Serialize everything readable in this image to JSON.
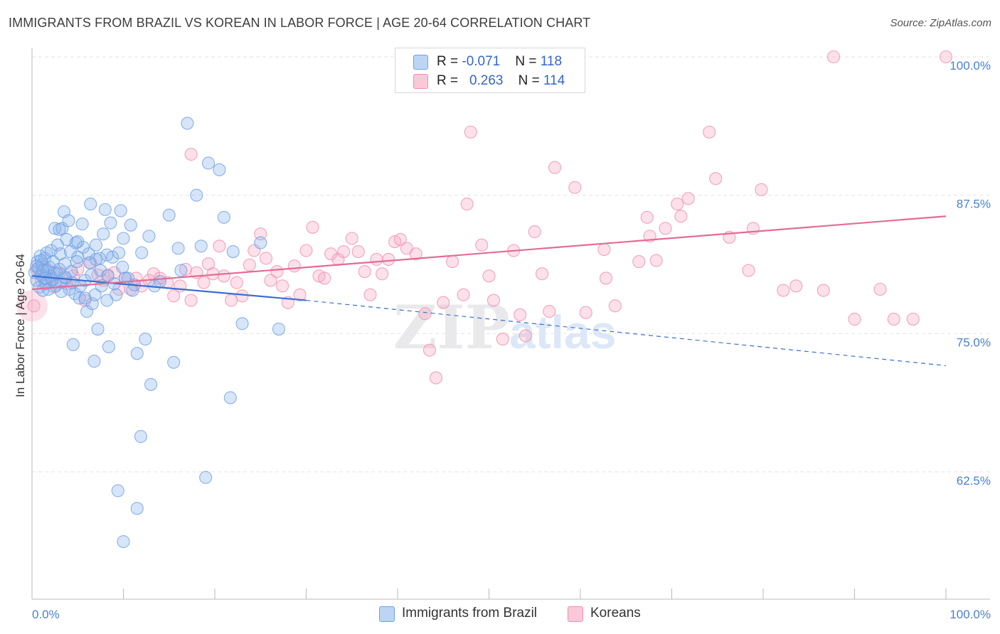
{
  "title": "IMMIGRANTS FROM BRAZIL VS KOREAN IN LABOR FORCE | AGE 20-64 CORRELATION CHART",
  "source": "Source: ZipAtlas.com",
  "watermark": {
    "zip": "ZIP",
    "atlas": "atlas"
  },
  "legend": {
    "rows": [
      {
        "r_label": "R = ",
        "r_value": "-0.071",
        "n_label": "N = ",
        "n_value": "118",
        "color": "#a7c8f0"
      },
      {
        "r_label": "R = ",
        "r_value": "0.263",
        "n_label": "N = ",
        "n_value": "114",
        "color": "#f7b8cb"
      }
    ]
  },
  "bottom_legend": {
    "brazil": "Immigrants from Brazil",
    "koreans": "Koreans"
  },
  "chart_data": {
    "type": "scatter",
    "title": "IMMIGRANTS FROM BRAZIL VS KOREAN IN LABOR FORCE | AGE 20-64 CORRELATION CHART",
    "xlabel": "",
    "ylabel": "In Labor Force | Age 20-64",
    "xlim": [
      0,
      100
    ],
    "ylim": [
      51,
      102
    ],
    "x_tick_labels": [
      "0.0%",
      "100.0%"
    ],
    "y_ticks": [
      62.5,
      75.0,
      87.5,
      100.0
    ],
    "y_tick_labels": [
      "62.5%",
      "75.0%",
      "87.5%",
      "100.0%"
    ],
    "grid": true,
    "legend_position": "top-center",
    "colors": {
      "brazil": "#6fa0e6",
      "brazil_line": "#3a6fd1",
      "korean": "#f08fac",
      "korean_line": "#e46b95"
    },
    "series": [
      {
        "name": "Immigrants from Brazil",
        "r": -0.071,
        "n": 118,
        "trend": {
          "solid": [
            [
              0,
              80.2
            ],
            [
              30,
              78.0
            ]
          ],
          "dashed": [
            [
              30,
              78.0
            ],
            [
              100,
              72.1
            ]
          ]
        },
        "points": [
          [
            0.3,
            80.5
          ],
          [
            0.5,
            79.8
          ],
          [
            0.6,
            81.5
          ],
          [
            0.7,
            80.9
          ],
          [
            0.8,
            79.2
          ],
          [
            0.9,
            82.0
          ],
          [
            1.0,
            80.3
          ],
          [
            1.1,
            81.2
          ],
          [
            1.2,
            78.9
          ],
          [
            1.3,
            80.0
          ],
          [
            1.4,
            81.8
          ],
          [
            1.5,
            79.5
          ],
          [
            1.6,
            82.3
          ],
          [
            1.7,
            80.7
          ],
          [
            1.8,
            79.0
          ],
          [
            1.9,
            81.0
          ],
          [
            2.0,
            80.2
          ],
          [
            2.1,
            82.5
          ],
          [
            2.2,
            79.8
          ],
          [
            2.3,
            81.5
          ],
          [
            2.4,
            80.5
          ],
          [
            2.5,
            84.5
          ],
          [
            2.6,
            79.3
          ],
          [
            2.8,
            83.0
          ],
          [
            3.0,
            80.8
          ],
          [
            3.1,
            82.2
          ],
          [
            3.2,
            79.6
          ],
          [
            3.3,
            84.5
          ],
          [
            3.5,
            86.0
          ],
          [
            3.6,
            81.3
          ],
          [
            3.7,
            80.0
          ],
          [
            3.8,
            83.5
          ],
          [
            4.0,
            85.2
          ],
          [
            4.1,
            79.0
          ],
          [
            4.2,
            82.4
          ],
          [
            4.3,
            80.6
          ],
          [
            4.5,
            74.0
          ],
          [
            4.7,
            78.6
          ],
          [
            4.8,
            83.2
          ],
          [
            5.0,
            81.9
          ],
          [
            5.2,
            78.2
          ],
          [
            5.3,
            79.3
          ],
          [
            5.5,
            84.9
          ],
          [
            5.6,
            82.8
          ],
          [
            5.8,
            79.8
          ],
          [
            6.0,
            77.0
          ],
          [
            6.2,
            82.2
          ],
          [
            6.4,
            86.7
          ],
          [
            6.5,
            80.3
          ],
          [
            6.6,
            77.7
          ],
          [
            6.8,
            72.5
          ],
          [
            7.0,
            83.0
          ],
          [
            7.2,
            75.4
          ],
          [
            7.4,
            81.8
          ],
          [
            7.5,
            80.7
          ],
          [
            7.6,
            79.3
          ],
          [
            7.8,
            84.0
          ],
          [
            8.0,
            86.2
          ],
          [
            8.2,
            82.1
          ],
          [
            8.4,
            73.8
          ],
          [
            8.6,
            85.0
          ],
          [
            8.8,
            81.9
          ],
          [
            9.0,
            79.5
          ],
          [
            9.2,
            78.5
          ],
          [
            9.5,
            82.3
          ],
          [
            9.7,
            86.1
          ],
          [
            10.0,
            83.6
          ],
          [
            10.2,
            80.0
          ],
          [
            10.5,
            80.0
          ],
          [
            10.8,
            84.8
          ],
          [
            11.0,
            78.9
          ],
          [
            11.2,
            79.4
          ],
          [
            11.5,
            73.2
          ],
          [
            11.5,
            59.2
          ],
          [
            12.0,
            82.3
          ],
          [
            12.4,
            74.5
          ],
          [
            12.8,
            83.8
          ],
          [
            13.0,
            70.4
          ],
          [
            13.4,
            79.3
          ],
          [
            14.0,
            79.7
          ],
          [
            15.0,
            85.7
          ],
          [
            15.5,
            72.4
          ],
          [
            16.0,
            82.7
          ],
          [
            16.3,
            80.7
          ],
          [
            17.0,
            94.0
          ],
          [
            18.0,
            87.5
          ],
          [
            18.5,
            82.9
          ],
          [
            19.0,
            62.0
          ],
          [
            19.3,
            90.4
          ],
          [
            20.5,
            89.8
          ],
          [
            21.0,
            85.5
          ],
          [
            21.7,
            69.2
          ],
          [
            22.0,
            82.4
          ],
          [
            23.0,
            75.9
          ],
          [
            25.0,
            83.2
          ],
          [
            27.0,
            75.4
          ],
          [
            2.2,
            79.9
          ],
          [
            4.4,
            79.6
          ],
          [
            6.9,
            78.5
          ],
          [
            5.8,
            78.2
          ],
          [
            3.2,
            78.8
          ],
          [
            9.9,
            81.0
          ],
          [
            1.0,
            81.6
          ],
          [
            0.5,
            81.1
          ],
          [
            2.7,
            80.4
          ],
          [
            4.9,
            81.5
          ],
          [
            8.3,
            80.2
          ],
          [
            6.3,
            81.4
          ],
          [
            1.5,
            80.0
          ],
          [
            3.6,
            80.1
          ],
          [
            10.0,
            56.2
          ],
          [
            11.9,
            65.7
          ],
          [
            9.4,
            60.8
          ],
          [
            7.0,
            81.7
          ],
          [
            3.0,
            84.4
          ],
          [
            5.0,
            83.3
          ],
          [
            8.2,
            78.0
          ],
          [
            1.2,
            80.7
          ]
        ]
      },
      {
        "name": "Koreans",
        "r": 0.263,
        "n": 114,
        "trend": {
          "solid": [
            [
              0,
              79.0
            ],
            [
              100,
              85.6
            ]
          ]
        },
        "points": [
          [
            0.2,
            77.5
          ],
          [
            0.5,
            80.8
          ],
          [
            1.0,
            79.8
          ],
          [
            1.4,
            81.0
          ],
          [
            2.0,
            80.0
          ],
          [
            2.4,
            79.2
          ],
          [
            3.0,
            80.5
          ],
          [
            3.8,
            79.5
          ],
          [
            4.5,
            80.2
          ],
          [
            5.0,
            80.8
          ],
          [
            5.8,
            78.0
          ],
          [
            6.4,
            81.4
          ],
          [
            7.2,
            80.3
          ],
          [
            7.8,
            79.8
          ],
          [
            8.3,
            80.3
          ],
          [
            9.0,
            80.5
          ],
          [
            9.5,
            79.0
          ],
          [
            10.2,
            80.0
          ],
          [
            10.8,
            79.0
          ],
          [
            11.4,
            80.0
          ],
          [
            12.0,
            79.3
          ],
          [
            12.8,
            79.8
          ],
          [
            13.3,
            80.4
          ],
          [
            14.0,
            80.0
          ],
          [
            14.8,
            79.6
          ],
          [
            15.5,
            78.4
          ],
          [
            16.2,
            79.3
          ],
          [
            16.8,
            80.8
          ],
          [
            17.4,
            78.0
          ],
          [
            18.0,
            80.5
          ],
          [
            18.8,
            79.6
          ],
          [
            19.3,
            81.3
          ],
          [
            19.8,
            80.4
          ],
          [
            20.5,
            82.9
          ],
          [
            21.0,
            80.2
          ],
          [
            21.8,
            78.0
          ],
          [
            22.4,
            79.6
          ],
          [
            23.0,
            78.4
          ],
          [
            23.8,
            81.2
          ],
          [
            24.3,
            82.5
          ],
          [
            25.0,
            84.0
          ],
          [
            25.6,
            81.8
          ],
          [
            26.1,
            79.8
          ],
          [
            26.8,
            80.6
          ],
          [
            27.4,
            79.3
          ],
          [
            28.0,
            77.8
          ],
          [
            28.7,
            81.1
          ],
          [
            29.3,
            78.5
          ],
          [
            30.0,
            82.5
          ],
          [
            30.7,
            84.6
          ],
          [
            31.4,
            80.2
          ],
          [
            32.0,
            80.0
          ],
          [
            32.7,
            82.2
          ],
          [
            33.5,
            81.7
          ],
          [
            34.1,
            82.4
          ],
          [
            35.0,
            83.6
          ],
          [
            35.7,
            82.4
          ],
          [
            36.4,
            80.6
          ],
          [
            37.0,
            78.5
          ],
          [
            37.7,
            81.7
          ],
          [
            38.3,
            80.4
          ],
          [
            39.0,
            81.7
          ],
          [
            39.7,
            83.3
          ],
          [
            40.3,
            83.5
          ],
          [
            41.0,
            82.7
          ],
          [
            42.0,
            82.2
          ],
          [
            43.0,
            76.8
          ],
          [
            43.5,
            73.5
          ],
          [
            44.2,
            71.0
          ],
          [
            45.0,
            77.8
          ],
          [
            46.0,
            81.5
          ],
          [
            47.2,
            78.5
          ],
          [
            47.6,
            86.7
          ],
          [
            48.0,
            93.2
          ],
          [
            49.2,
            83.0
          ],
          [
            50.0,
            80.2
          ],
          [
            50.5,
            78.0
          ],
          [
            51.5,
            74.5
          ],
          [
            52.7,
            82.5
          ],
          [
            53.4,
            76.7
          ],
          [
            54.0,
            74.8
          ],
          [
            55.0,
            84.2
          ],
          [
            55.8,
            80.4
          ],
          [
            56.6,
            77.0
          ],
          [
            57.2,
            90.0
          ],
          [
            59.4,
            88.2
          ],
          [
            60.6,
            76.9
          ],
          [
            62.6,
            82.6
          ],
          [
            62.8,
            80.0
          ],
          [
            63.8,
            77.5
          ],
          [
            66.4,
            81.5
          ],
          [
            67.3,
            85.5
          ],
          [
            67.6,
            83.8
          ],
          [
            68.3,
            81.6
          ],
          [
            69.3,
            84.5
          ],
          [
            70.6,
            86.7
          ],
          [
            71.0,
            85.6
          ],
          [
            71.8,
            87.2
          ],
          [
            74.1,
            93.2
          ],
          [
            74.8,
            89.0
          ],
          [
            76.3,
            83.7
          ],
          [
            78.4,
            80.7
          ],
          [
            78.9,
            84.5
          ],
          [
            79.8,
            88.0
          ],
          [
            82.2,
            78.9
          ],
          [
            83.6,
            79.3
          ],
          [
            86.6,
            78.9
          ],
          [
            90.0,
            76.3
          ],
          [
            92.8,
            79.0
          ],
          [
            94.3,
            76.3
          ],
          [
            96.4,
            76.3
          ],
          [
            100.0,
            100.0
          ],
          [
            17.4,
            91.2
          ],
          [
            87.7,
            100.0
          ]
        ]
      }
    ]
  }
}
